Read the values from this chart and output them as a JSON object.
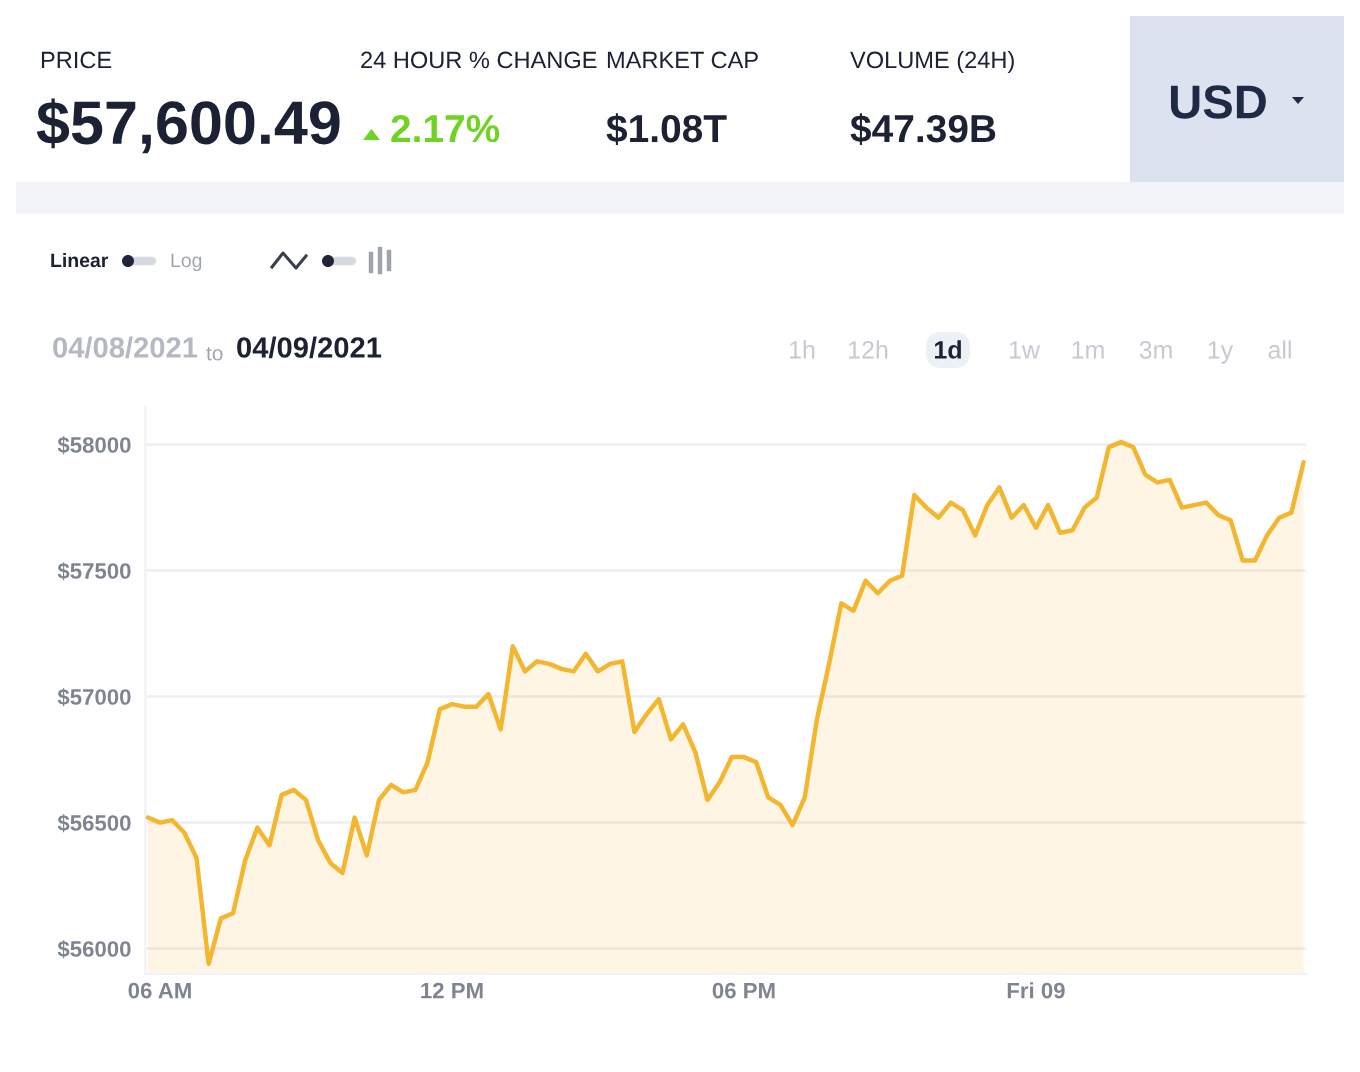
{
  "chart_data": {
    "type": "area",
    "color": "#f4b52f",
    "x": [
      "2021-04-08T05:45",
      "2021-04-08T06:00",
      "2021-04-08T06:15",
      "2021-04-08T06:30",
      "2021-04-08T06:45",
      "2021-04-08T07:00",
      "2021-04-08T07:15",
      "2021-04-08T07:30",
      "2021-04-08T07:45",
      "2021-04-08T08:00",
      "2021-04-08T08:15",
      "2021-04-08T08:30",
      "2021-04-08T08:45",
      "2021-04-08T09:00",
      "2021-04-08T09:15",
      "2021-04-08T09:30",
      "2021-04-08T09:45",
      "2021-04-08T10:00",
      "2021-04-08T10:15",
      "2021-04-08T10:30",
      "2021-04-08T10:45",
      "2021-04-08T11:00",
      "2021-04-08T11:15",
      "2021-04-08T11:30",
      "2021-04-08T11:45",
      "2021-04-08T12:00",
      "2021-04-08T12:15",
      "2021-04-08T12:30",
      "2021-04-08T12:45",
      "2021-04-08T13:00",
      "2021-04-08T13:15",
      "2021-04-08T13:30",
      "2021-04-08T13:45",
      "2021-04-08T14:00",
      "2021-04-08T14:15",
      "2021-04-08T14:30",
      "2021-04-08T14:45",
      "2021-04-08T15:00",
      "2021-04-08T15:15",
      "2021-04-08T15:30",
      "2021-04-08T15:45",
      "2021-04-08T16:00",
      "2021-04-08T16:15",
      "2021-04-08T16:30",
      "2021-04-08T16:45",
      "2021-04-08T17:00",
      "2021-04-08T17:15",
      "2021-04-08T17:30",
      "2021-04-08T17:45",
      "2021-04-08T18:00",
      "2021-04-08T18:15",
      "2021-04-08T18:30",
      "2021-04-08T18:45",
      "2021-04-08T19:00",
      "2021-04-08T19:15",
      "2021-04-08T19:30",
      "2021-04-08T19:45",
      "2021-04-08T20:00",
      "2021-04-08T20:15",
      "2021-04-08T20:30",
      "2021-04-08T20:45",
      "2021-04-08T21:00",
      "2021-04-08T21:15",
      "2021-04-08T21:30",
      "2021-04-08T21:45",
      "2021-04-08T22:00",
      "2021-04-08T22:15",
      "2021-04-08T22:30",
      "2021-04-08T22:45",
      "2021-04-08T23:00",
      "2021-04-08T23:15",
      "2021-04-08T23:30",
      "2021-04-08T23:45",
      "2021-04-09T00:00",
      "2021-04-09T00:15",
      "2021-04-09T00:30",
      "2021-04-09T00:45",
      "2021-04-09T01:00",
      "2021-04-09T01:15",
      "2021-04-09T01:30",
      "2021-04-09T01:45",
      "2021-04-09T02:00",
      "2021-04-09T02:15",
      "2021-04-09T02:30",
      "2021-04-09T02:45",
      "2021-04-09T03:00",
      "2021-04-09T03:15",
      "2021-04-09T03:30",
      "2021-04-09T03:45",
      "2021-04-09T04:00",
      "2021-04-09T04:15",
      "2021-04-09T04:30",
      "2021-04-09T04:45",
      "2021-04-09T05:00",
      "2021-04-09T05:15",
      "2021-04-09T05:30"
    ],
    "values": [
      56520,
      56500,
      56510,
      56460,
      56360,
      55940,
      56120,
      56140,
      56350,
      56480,
      56410,
      56610,
      56630,
      56590,
      56430,
      56340,
      56300,
      56520,
      56370,
      56590,
      56650,
      56620,
      56630,
      56740,
      56950,
      56970,
      56960,
      56960,
      57010,
      56870,
      57200,
      57100,
      57140,
      57130,
      57110,
      57100,
      57170,
      57100,
      57130,
      57140,
      56860,
      56930,
      56990,
      56830,
      56890,
      56780,
      56590,
      56660,
      56760,
      56760,
      56740,
      56600,
      56570,
      56490,
      56600,
      56910,
      57130,
      57370,
      57340,
      57460,
      57410,
      57460,
      57480,
      57800,
      57750,
      57710,
      57770,
      57740,
      57640,
      57760,
      57830,
      57710,
      57760,
      57670,
      57760,
      57650,
      57660,
      57750,
      57790,
      57990,
      58010,
      57990,
      57880,
      57850,
      57860,
      57750,
      57760,
      57770,
      57720,
      57700,
      57540,
      57540,
      57640,
      57710,
      57730,
      57930
    ],
    "xlim": [
      "2021-04-08T05:42",
      "2021-04-09T05:33"
    ],
    "ylim": [
      55900,
      58150
    ],
    "xticks": [
      {
        "value": "2021-04-08T06:00",
        "label": "06 AM"
      },
      {
        "value": "2021-04-08T12:00",
        "label": "12 PM"
      },
      {
        "value": "2021-04-08T18:00",
        "label": "06 PM"
      },
      {
        "value": "2021-04-09T00:00",
        "label": "Fri 09"
      }
    ],
    "yticks": [
      {
        "value": 56000,
        "label": "$56000"
      },
      {
        "value": 56500,
        "label": "$56500"
      },
      {
        "value": 57000,
        "label": "$57000"
      },
      {
        "value": 57500,
        "label": "$57500"
      },
      {
        "value": 58000,
        "label": "$58000"
      }
    ],
    "grid": "y",
    "annotations": [
      "PRICE",
      "$57,600.49",
      "24 HOUR % CHANGE",
      "2.17%",
      "MARKET CAP",
      "$1.08T",
      "VOLUME (24H)",
      "$47.39B",
      "USD",
      "Linear",
      "Log",
      "04/08/2021",
      "to",
      "04/09/2021",
      "1h",
      "12h",
      "1d",
      "1w",
      "1m",
      "3m",
      "1y",
      "all"
    ]
  }
}
